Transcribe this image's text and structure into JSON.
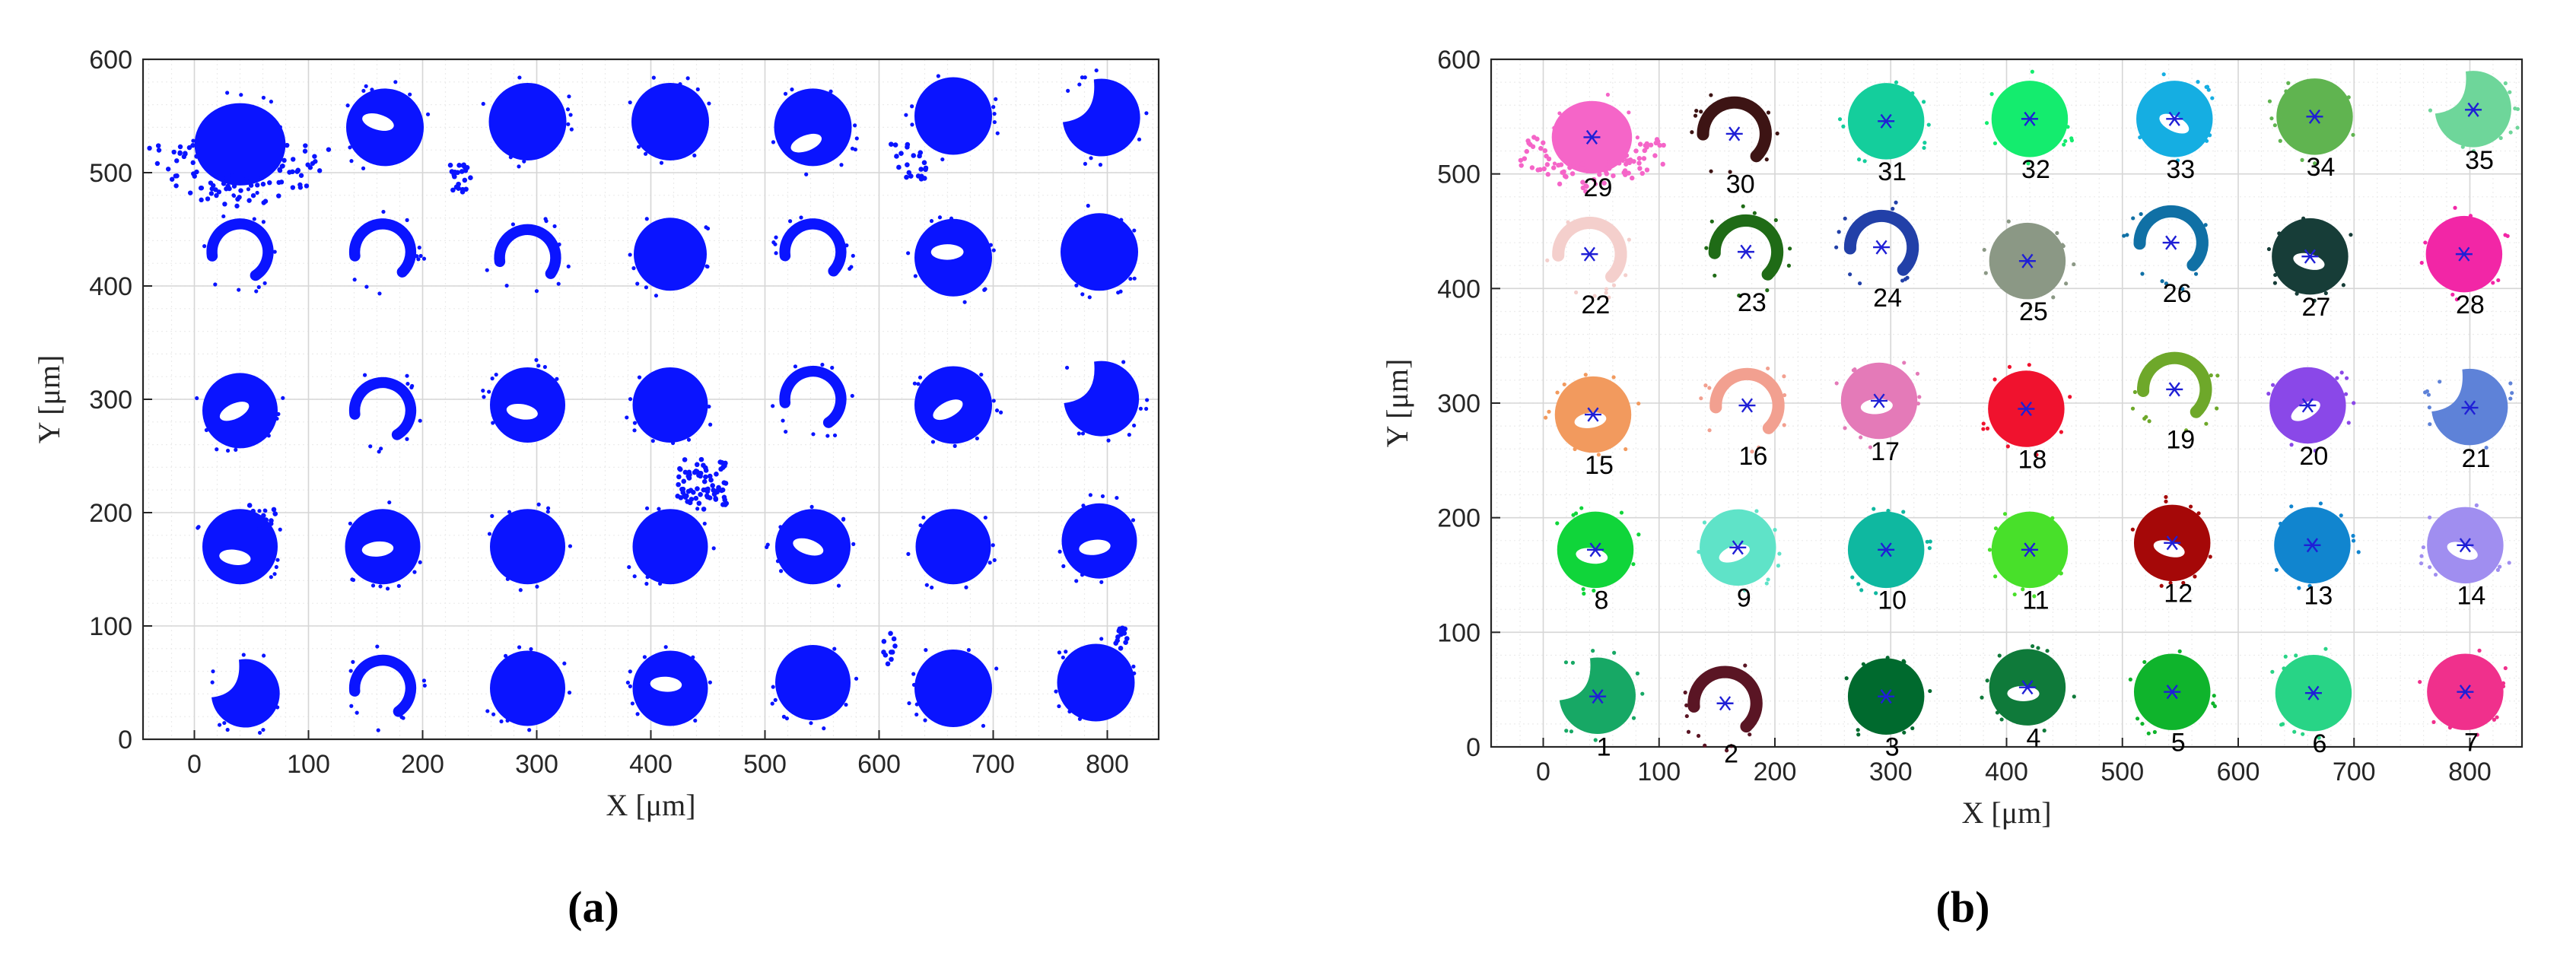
{
  "figure": {
    "panel_a_label": "(a)",
    "panel_b_label": "(b)"
  },
  "colors": {
    "points_a": "#0a14ff",
    "centroid_marker": "#1f1fd6",
    "grid": "#e3e3e3",
    "axis": "#262626"
  },
  "chart_data": [
    {
      "type": "scatter",
      "title": "",
      "xlabel": "X [μm]",
      "ylabel": "Y [μm]",
      "xlim": [
        -45,
        845
      ],
      "ylim": [
        0,
        600
      ],
      "xticks": [
        0,
        100,
        200,
        300,
        400,
        500,
        600,
        700,
        800
      ],
      "yticks": [
        0,
        100,
        200,
        300,
        400,
        500,
        600
      ],
      "grid": true,
      "legend": "none",
      "spots": [
        {
          "x": 40,
          "y": 525,
          "r": 38,
          "shape": "blob"
        },
        {
          "x": 167,
          "y": 540,
          "r": 34,
          "shape": "disk_gap"
        },
        {
          "x": 292,
          "y": 545,
          "r": 34,
          "shape": "disk"
        },
        {
          "x": 417,
          "y": 545,
          "r": 34,
          "shape": "disk"
        },
        {
          "x": 542,
          "y": 540,
          "r": 34,
          "shape": "disk_gap"
        },
        {
          "x": 665,
          "y": 550,
          "r": 34,
          "shape": "disk"
        },
        {
          "x": 795,
          "y": 548,
          "r": 34,
          "shape": "partial"
        },
        {
          "x": 40,
          "y": 430,
          "r": 30,
          "shape": "arc"
        },
        {
          "x": 165,
          "y": 430,
          "r": 30,
          "shape": "arc"
        },
        {
          "x": 292,
          "y": 425,
          "r": 30,
          "shape": "arc"
        },
        {
          "x": 417,
          "y": 428,
          "r": 32,
          "shape": "disk"
        },
        {
          "x": 542,
          "y": 430,
          "r": 30,
          "shape": "arc"
        },
        {
          "x": 665,
          "y": 425,
          "r": 34,
          "shape": "disk_gap"
        },
        {
          "x": 793,
          "y": 430,
          "r": 34,
          "shape": "disk"
        },
        {
          "x": 40,
          "y": 290,
          "r": 33,
          "shape": "disk_gap"
        },
        {
          "x": 165,
          "y": 290,
          "r": 30,
          "shape": "arc"
        },
        {
          "x": 292,
          "y": 295,
          "r": 33,
          "shape": "disk_gap"
        },
        {
          "x": 417,
          "y": 295,
          "r": 33,
          "shape": "disk"
        },
        {
          "x": 542,
          "y": 300,
          "r": 30,
          "shape": "arc"
        },
        {
          "x": 665,
          "y": 295,
          "r": 34,
          "shape": "disk_gap"
        },
        {
          "x": 795,
          "y": 300,
          "r": 33,
          "shape": "partial"
        },
        {
          "x": 40,
          "y": 170,
          "r": 33,
          "shape": "disk_gap"
        },
        {
          "x": 165,
          "y": 170,
          "r": 33,
          "shape": "disk_gap"
        },
        {
          "x": 292,
          "y": 170,
          "r": 33,
          "shape": "disk"
        },
        {
          "x": 417,
          "y": 170,
          "r": 33,
          "shape": "disk"
        },
        {
          "x": 542,
          "y": 170,
          "r": 33,
          "shape": "disk_gap"
        },
        {
          "x": 665,
          "y": 170,
          "r": 33,
          "shape": "disk"
        },
        {
          "x": 793,
          "y": 175,
          "r": 33,
          "shape": "disk_gap"
        },
        {
          "x": 45,
          "y": 40,
          "r": 30,
          "shape": "partial"
        },
        {
          "x": 165,
          "y": 45,
          "r": 30,
          "shape": "arc"
        },
        {
          "x": 292,
          "y": 45,
          "r": 33,
          "shape": "disk"
        },
        {
          "x": 417,
          "y": 45,
          "r": 33,
          "shape": "disk_gap"
        },
        {
          "x": 542,
          "y": 50,
          "r": 33,
          "shape": "disk"
        },
        {
          "x": 665,
          "y": 45,
          "r": 34,
          "shape": "disk"
        },
        {
          "x": 790,
          "y": 50,
          "r": 34,
          "shape": "disk"
        }
      ],
      "scatter_clusters": [
        {
          "x": 235,
          "y": 495,
          "spread": 12,
          "n": 22
        },
        {
          "x": 625,
          "y": 510,
          "spread": 16,
          "n": 22
        },
        {
          "x": 445,
          "y": 225,
          "spread": 22,
          "n": 80
        },
        {
          "x": 60,
          "y": 195,
          "spread": 14,
          "n": 10
        },
        {
          "x": 810,
          "y": 90,
          "spread": 10,
          "n": 14
        },
        {
          "x": 610,
          "y": 80,
          "spread": 14,
          "n": 10
        }
      ]
    },
    {
      "type": "scatter",
      "title": "",
      "xlabel": "X [μm]",
      "ylabel": "Y [μm]",
      "xlim": [
        -45,
        845
      ],
      "ylim": [
        0,
        600
      ],
      "xticks": [
        0,
        100,
        200,
        300,
        400,
        500,
        600,
        700,
        800
      ],
      "yticks": [
        0,
        100,
        200,
        300,
        400,
        500,
        600
      ],
      "grid": true,
      "legend": "none",
      "clusters": [
        {
          "label": "1",
          "x": 47,
          "y": 44,
          "color": "#17a865",
          "shape": "partial"
        },
        {
          "label": "2",
          "x": 157,
          "y": 38,
          "color": "#5a1524",
          "shape": "arc"
        },
        {
          "label": "3",
          "x": 296,
          "y": 44,
          "color": "#006a2e",
          "shape": "disk"
        },
        {
          "label": "4",
          "x": 418,
          "y": 52,
          "color": "#0f7a3a",
          "shape": "disk_gap"
        },
        {
          "label": "5",
          "x": 543,
          "y": 48,
          "color": "#0fb42c",
          "shape": "disk"
        },
        {
          "label": "6",
          "x": 665,
          "y": 47,
          "color": "#28d486",
          "shape": "disk"
        },
        {
          "label": "7",
          "x": 796,
          "y": 48,
          "color": "#f0308c",
          "shape": "disk"
        },
        {
          "label": "8",
          "x": 45,
          "y": 172,
          "color": "#10d53a",
          "shape": "disk_gap"
        },
        {
          "label": "9",
          "x": 168,
          "y": 174,
          "color": "#5fe3c8",
          "shape": "disk_gap"
        },
        {
          "label": "10",
          "x": 296,
          "y": 172,
          "color": "#0fb8a0",
          "shape": "disk"
        },
        {
          "label": "11",
          "x": 420,
          "y": 172,
          "color": "#48e02a",
          "shape": "disk"
        },
        {
          "label": "12",
          "x": 543,
          "y": 178,
          "color": "#a50808",
          "shape": "disk_gap"
        },
        {
          "label": "13",
          "x": 664,
          "y": 176,
          "color": "#1185cf",
          "shape": "disk"
        },
        {
          "label": "14",
          "x": 796,
          "y": 176,
          "color": "#a08ef0",
          "shape": "disk_gap"
        },
        {
          "label": "15",
          "x": 43,
          "y": 290,
          "color": "#f29a5e",
          "shape": "disk_gap"
        },
        {
          "label": "16",
          "x": 176,
          "y": 298,
          "color": "#f2a090",
          "shape": "arc"
        },
        {
          "label": "17",
          "x": 290,
          "y": 302,
          "color": "#e47ab8",
          "shape": "disk_gap"
        },
        {
          "label": "18",
          "x": 417,
          "y": 295,
          "color": "#f0122e",
          "shape": "disk"
        },
        {
          "label": "19",
          "x": 545,
          "y": 312,
          "color": "#6ea82a",
          "shape": "arc"
        },
        {
          "label": "20",
          "x": 660,
          "y": 298,
          "color": "#8a48e8",
          "shape": "disk_gap"
        },
        {
          "label": "21",
          "x": 800,
          "y": 296,
          "color": "#5e82d8",
          "shape": "partial"
        },
        {
          "label": "22",
          "x": 40,
          "y": 430,
          "color": "#f4cfcc",
          "shape": "arc"
        },
        {
          "label": "23",
          "x": 175,
          "y": 432,
          "color": "#1f6b16",
          "shape": "arc"
        },
        {
          "label": "24",
          "x": 292,
          "y": 436,
          "color": "#2240a8",
          "shape": "arc"
        },
        {
          "label": "25",
          "x": 418,
          "y": 424,
          "color": "#8b9885",
          "shape": "disk"
        },
        {
          "label": "26",
          "x": 542,
          "y": 440,
          "color": "#1070a5",
          "shape": "arc"
        },
        {
          "label": "27",
          "x": 662,
          "y": 428,
          "color": "#173d38",
          "shape": "disk_gap"
        },
        {
          "label": "28",
          "x": 795,
          "y": 430,
          "color": "#f226a6",
          "shape": "disk"
        },
        {
          "label": "29",
          "x": 42,
          "y": 532,
          "color": "#f565c8",
          "shape": "blob"
        },
        {
          "label": "30",
          "x": 165,
          "y": 535,
          "color": "#3d1414",
          "shape": "arc"
        },
        {
          "label": "31",
          "x": 296,
          "y": 546,
          "color": "#14ce9c",
          "shape": "disk"
        },
        {
          "label": "32",
          "x": 420,
          "y": 548,
          "color": "#14ec6e",
          "shape": "disk"
        },
        {
          "label": "33",
          "x": 545,
          "y": 548,
          "color": "#15aee2",
          "shape": "disk_gap"
        },
        {
          "label": "34",
          "x": 666,
          "y": 550,
          "color": "#60b450",
          "shape": "disk"
        },
        {
          "label": "35",
          "x": 803,
          "y": 556,
          "color": "#6ed69a",
          "shape": "partial"
        }
      ]
    }
  ]
}
